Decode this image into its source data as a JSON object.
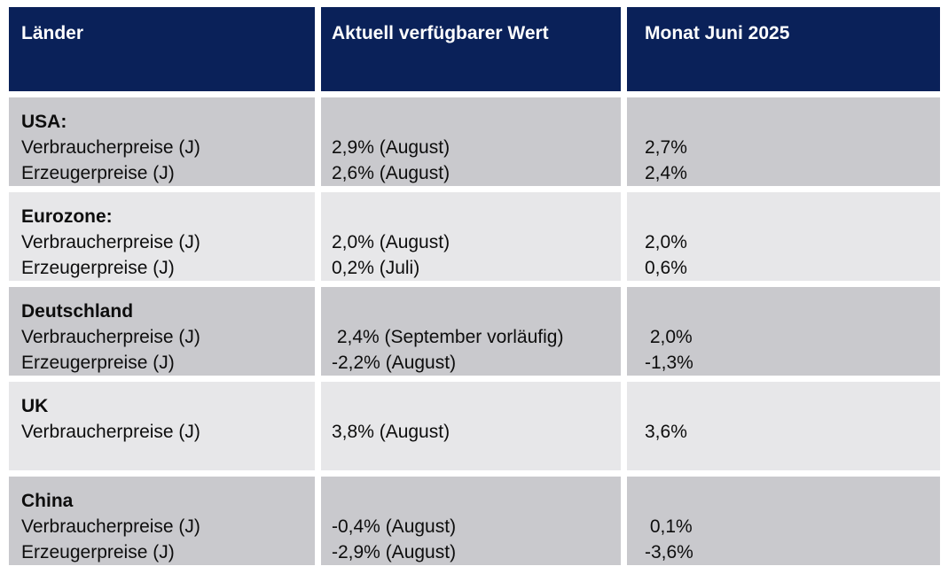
{
  "colors": {
    "header_bg": "#0a2159",
    "header_text": "#ffffff",
    "row_bg_dark": "#c9c9cd",
    "row_bg_light": "#e7e7e9",
    "body_text": "#0d0d0d"
  },
  "table": {
    "header": {
      "col1": "Länder",
      "col2": "Aktuell verfügbarer Wert",
      "col3": "Monat Juni 2025"
    },
    "rows": [
      {
        "country": "USA:",
        "labels": [
          "Verbraucherpreise (J)",
          "Erzeugerpreise (J)"
        ],
        "values": [
          "2,9% (August)",
          "2,6% (August)"
        ],
        "month_values": [
          "2,7%",
          "2,4%"
        ]
      },
      {
        "country": "Eurozone:",
        "labels": [
          "Verbraucherpreise (J)",
          "Erzeugerpreise (J)"
        ],
        "values": [
          "2,0% (August)",
          "0,2% (Juli)"
        ],
        "month_values": [
          "2,0%",
          "0,6%"
        ]
      },
      {
        "country": "Deutschland",
        "labels": [
          "Verbraucherpreise (J)",
          "Erzeugerpreise (J)"
        ],
        "values": [
          " 2,4% (September vorläufig)",
          "-2,2% (August)"
        ],
        "month_values": [
          " 2,0%",
          "-1,3%"
        ]
      },
      {
        "country": "UK",
        "labels": [
          "Verbraucherpreise (J)"
        ],
        "values": [
          "3,8% (August)"
        ],
        "month_values": [
          "3,6%"
        ]
      },
      {
        "country": "China",
        "labels": [
          "Verbraucherpreise (J)",
          "Erzeugerpreise (J)"
        ],
        "values": [
          "-0,4% (August)",
          "-2,9% (August)"
        ],
        "month_values": [
          " 0,1%",
          "-3,6%"
        ]
      }
    ]
  }
}
